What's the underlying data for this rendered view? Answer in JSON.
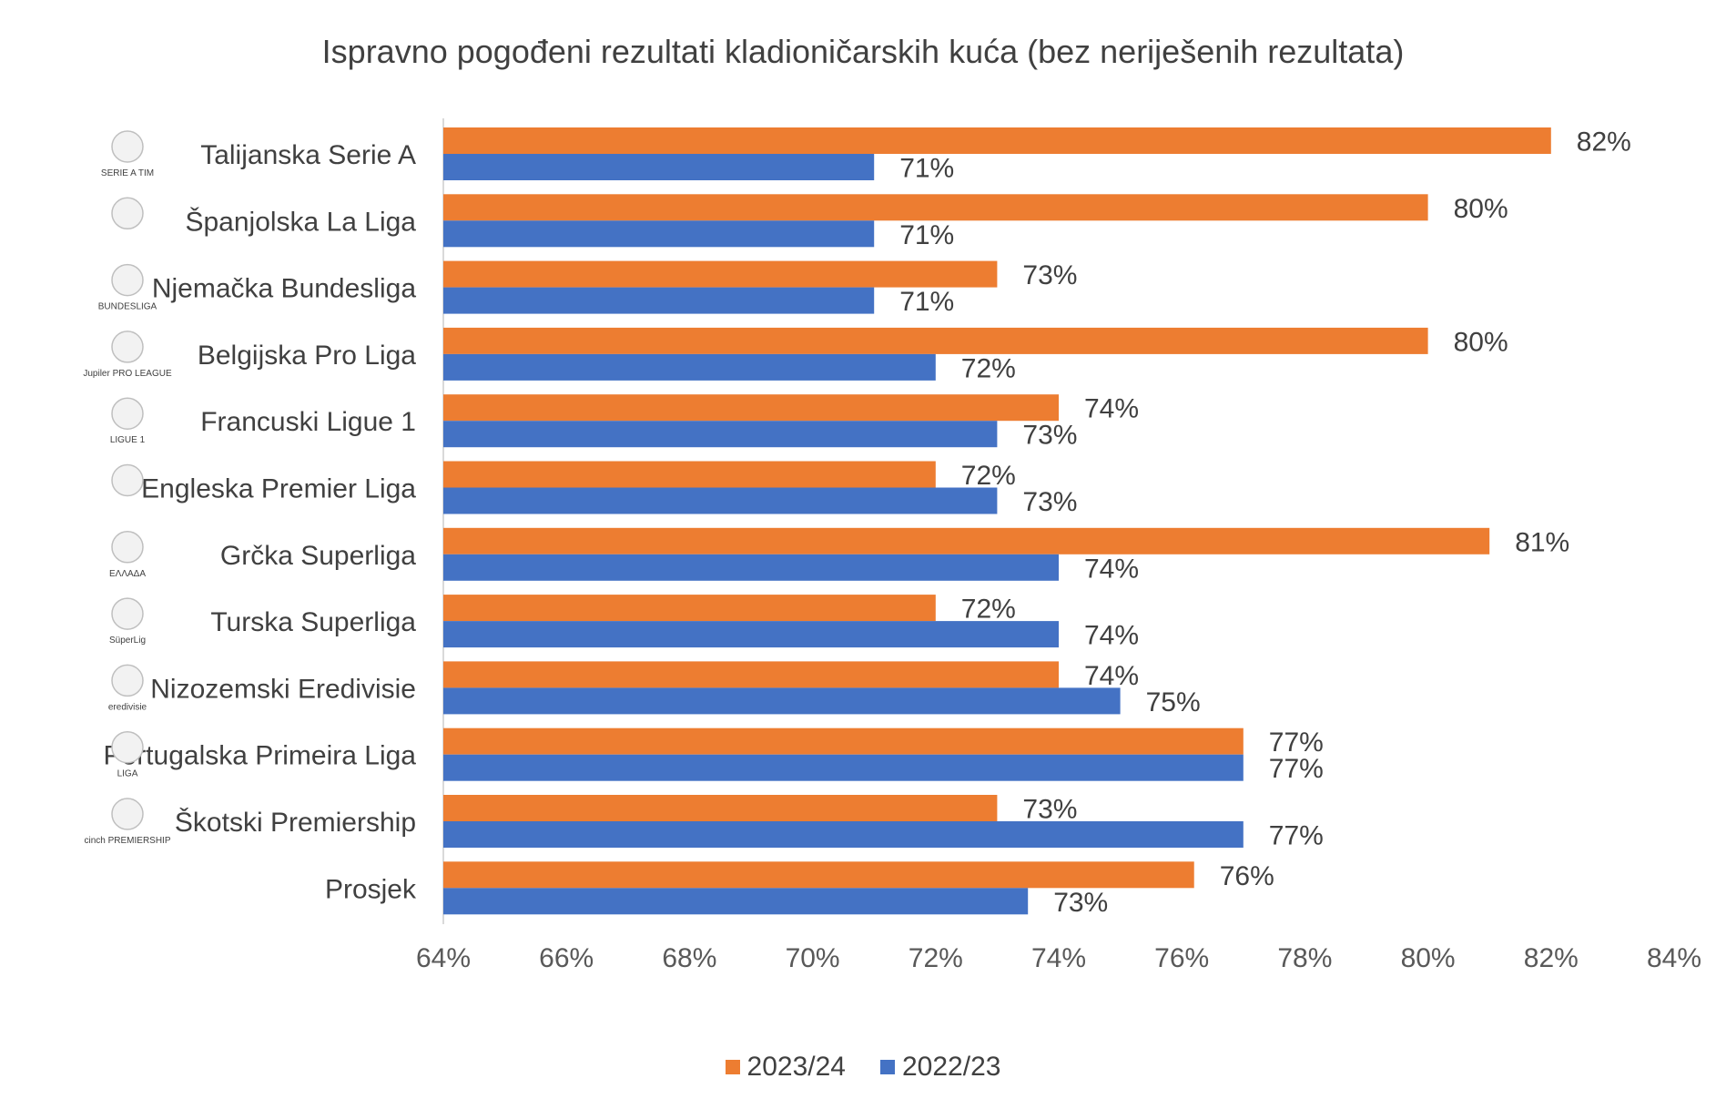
{
  "chart_data": {
    "type": "bar",
    "orientation": "horizontal",
    "title": "Ispravno pogođeni rezultati kladioničarskih kuća (bez neriješenih rezultata)",
    "categories": [
      "Talijanska Serie A",
      "Španjolska La Liga",
      "Njemačka Bundesliga",
      "Belgijska Pro Liga",
      "Francuski Ligue 1",
      "Engleska Premier Liga",
      "Grčka Superliga",
      "Turska Superliga",
      "Nizozemski Eredivisie",
      "Portugalska Primeira Liga",
      "Škotski Premiership",
      "Prosjek"
    ],
    "category_logos": [
      {
        "logo": "serie-a-logo",
        "text": "SERIE A TIM"
      },
      {
        "logo": "la-liga-logo",
        "text": ""
      },
      {
        "logo": "bundesliga-logo",
        "text": "BUNDESLIGA"
      },
      {
        "logo": "jupiler-pro-league-logo",
        "text": "Jupiler PRO LEAGUE"
      },
      {
        "logo": "ligue-1-logo",
        "text": "LIGUE 1"
      },
      {
        "logo": "premier-league-logo",
        "text": ""
      },
      {
        "logo": "greek-superleague-logo",
        "text": "ΕΛΛΑΔΑ"
      },
      {
        "logo": "super-lig-logo",
        "text": "SüperLig"
      },
      {
        "logo": "eredivisie-logo",
        "text": "eredivisie"
      },
      {
        "logo": "liga-portugal-logo",
        "text": "LIGA"
      },
      {
        "logo": "cinch-premiership-logo",
        "text": "cinch PREMIERSHIP"
      },
      {
        "logo": "",
        "text": ""
      }
    ],
    "series": [
      {
        "name": "2023/24",
        "color": "#ED7D31",
        "values": [
          82,
          80,
          73,
          80,
          74,
          72,
          81,
          72,
          74,
          77,
          73,
          76.2
        ],
        "labels": [
          "82%",
          "80%",
          "73%",
          "80%",
          "74%",
          "72%",
          "81%",
          "72%",
          "74%",
          "77%",
          "73%",
          "76%"
        ]
      },
      {
        "name": "2022/23",
        "color": "#4472C4",
        "values": [
          71,
          71,
          71,
          72,
          73,
          73,
          74,
          74,
          75,
          77,
          77,
          73.5
        ],
        "labels": [
          "71%",
          "71%",
          "71%",
          "72%",
          "73%",
          "73%",
          "74%",
          "74%",
          "75%",
          "77%",
          "77%",
          "73%"
        ]
      }
    ],
    "xlim": [
      64,
      84
    ],
    "xticks": [
      64,
      66,
      68,
      70,
      72,
      74,
      76,
      78,
      80,
      82,
      84
    ],
    "xtick_labels": [
      "64%",
      "66%",
      "68%",
      "70%",
      "72%",
      "74%",
      "76%",
      "78%",
      "80%",
      "82%",
      "84%"
    ],
    "xlabel": "",
    "ylabel": "",
    "grid": false,
    "legend_position": "bottom"
  }
}
